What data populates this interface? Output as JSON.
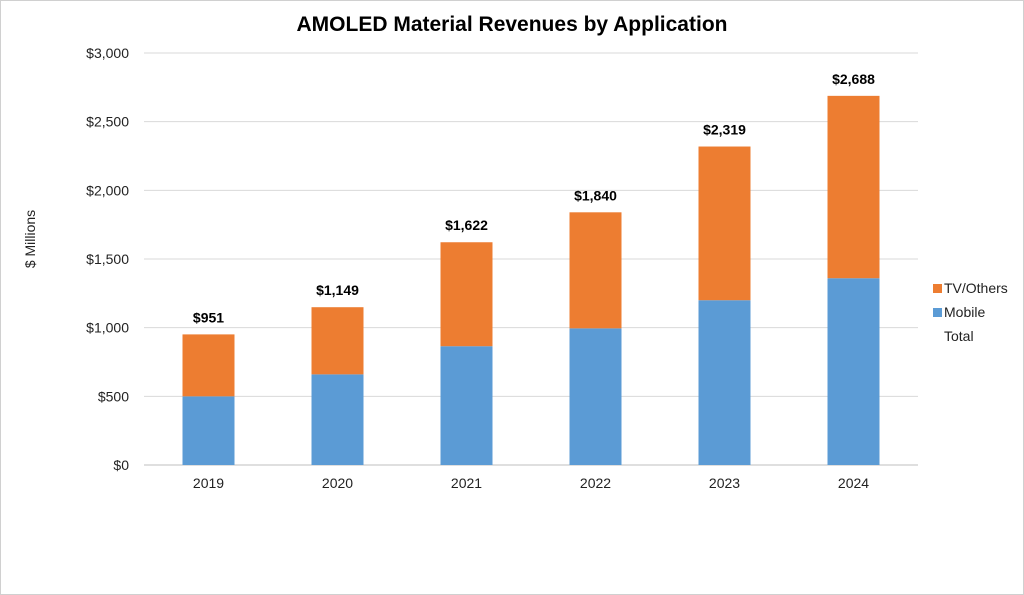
{
  "chart_data": {
    "type": "bar",
    "stacked": true,
    "title": "AMOLED Material Revenues by Application",
    "xlabel": "",
    "ylabel": "$ Millions",
    "categories": [
      "2019",
      "2020",
      "2021",
      "2022",
      "2023",
      "2024"
    ],
    "series": [
      {
        "name": "Mobile",
        "color": "#5b9bd5",
        "values": [
          500,
          660,
          865,
          995,
          1200,
          1360
        ]
      },
      {
        "name": "TV/Others",
        "color": "#ed7d31",
        "values": [
          451,
          489,
          757,
          845,
          1119,
          1328
        ]
      }
    ],
    "totals": {
      "name": "Total",
      "values": [
        951,
        1149,
        1622,
        1840,
        2319,
        2688
      ],
      "labels": [
        "$951",
        "$1,149",
        "$1,622",
        "$1,840",
        "$2,319",
        "$2,688"
      ]
    },
    "ylim": [
      0,
      3000
    ],
    "yticks": [
      {
        "value": 0,
        "label": "$0"
      },
      {
        "value": 500,
        "label": "$500"
      },
      {
        "value": 1000,
        "label": "$1,000"
      },
      {
        "value": 1500,
        "label": "$1,500"
      },
      {
        "value": 2000,
        "label": "$2,000"
      },
      {
        "value": 2500,
        "label": "$2,500"
      },
      {
        "value": 3000,
        "label": "$3,000"
      }
    ],
    "grid": true,
    "legend_position": "right",
    "legend": [
      "TV/Others",
      "Mobile",
      "Total"
    ]
  }
}
